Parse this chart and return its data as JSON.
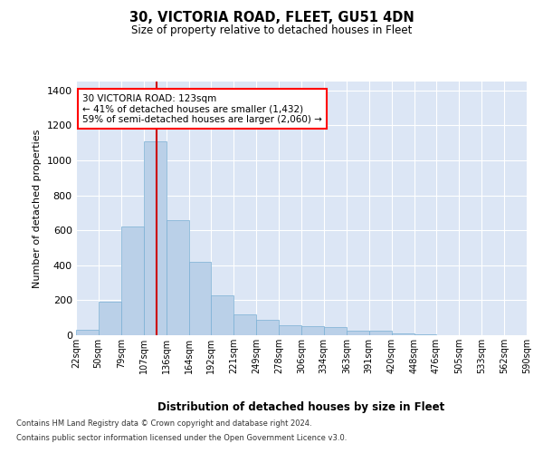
{
  "title_line1": "30, VICTORIA ROAD, FLEET, GU51 4DN",
  "title_line2": "Size of property relative to detached houses in Fleet",
  "xlabel": "Distribution of detached houses by size in Fleet",
  "ylabel": "Number of detached properties",
  "bar_color": "#bad0e8",
  "bar_edge_color": "#7aafd4",
  "background_color": "#dce6f5",
  "annotation_text": "30 VICTORIA ROAD: 123sqm\n← 41% of detached houses are smaller (1,432)\n59% of semi-detached houses are larger (2,060) →",
  "vline_x": 123,
  "vline_color": "#cc0000",
  "footer_line1": "Contains HM Land Registry data © Crown copyright and database right 2024.",
  "footer_line2": "Contains public sector information licensed under the Open Government Licence v3.0.",
  "ylim": [
    0,
    1450
  ],
  "yticks": [
    0,
    200,
    400,
    600,
    800,
    1000,
    1200,
    1400
  ],
  "bins": [
    22,
    50,
    79,
    107,
    136,
    164,
    192,
    221,
    249,
    278,
    306,
    334,
    363,
    391,
    420,
    448,
    476,
    505,
    533,
    562,
    590
  ],
  "bin_labels": [
    "22sqm",
    "50sqm",
    "79sqm",
    "107sqm",
    "136sqm",
    "164sqm",
    "192sqm",
    "221sqm",
    "249sqm",
    "278sqm",
    "306sqm",
    "334sqm",
    "363sqm",
    "391sqm",
    "420sqm",
    "448sqm",
    "476sqm",
    "505sqm",
    "533sqm",
    "562sqm",
    "590sqm"
  ],
  "bar_heights": [
    30,
    190,
    620,
    1110,
    660,
    420,
    230,
    120,
    90,
    55,
    50,
    45,
    25,
    25,
    10,
    5,
    0,
    0,
    0,
    0
  ]
}
